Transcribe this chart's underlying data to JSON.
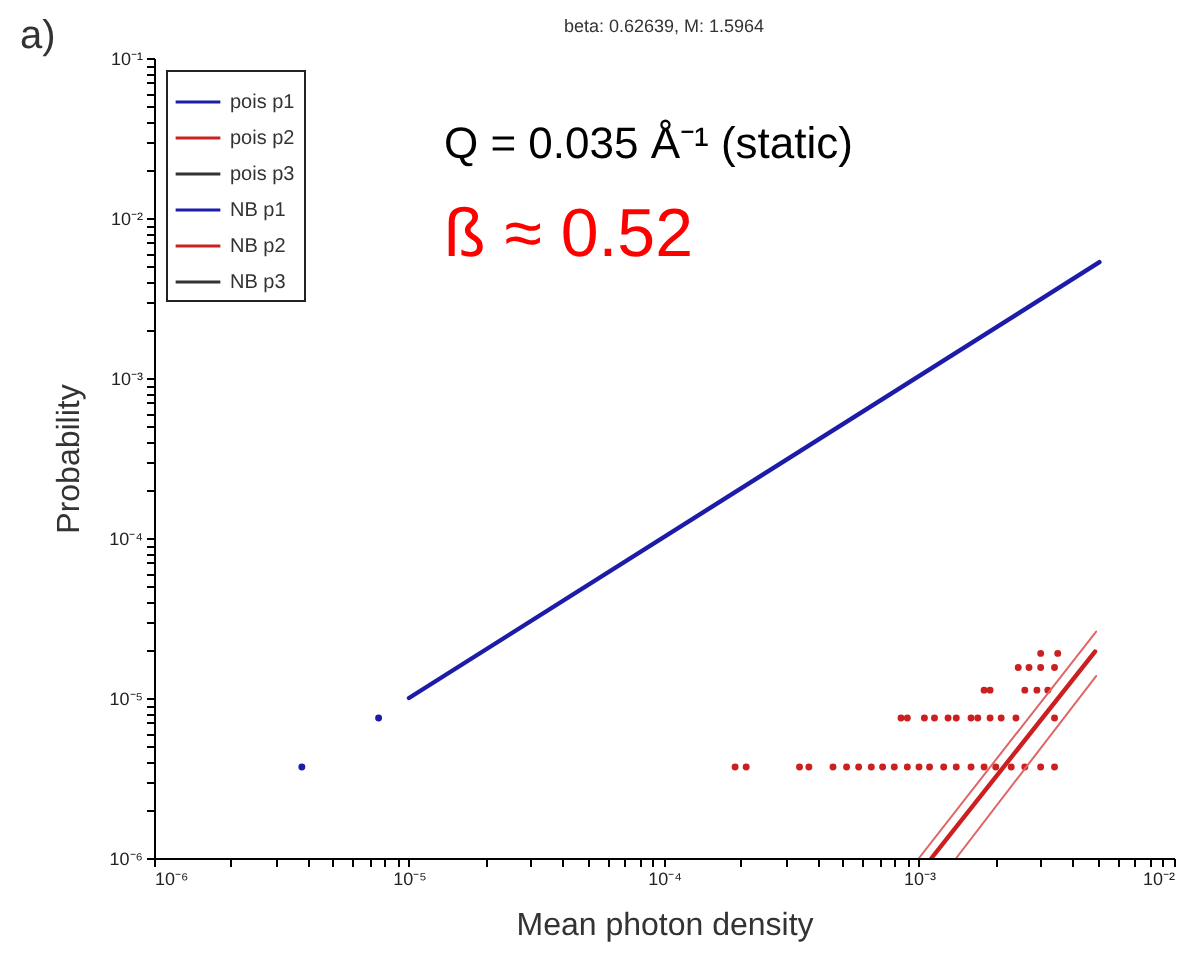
{
  "chart_data": {
    "type": "line",
    "title": "beta: 0.62639, M: 1.5964",
    "xlabel": "Mean photon density",
    "ylabel": "Probability",
    "annotations": [
      "a)",
      "Q = 0.035 Å⁻¹ (static)",
      "ß ≈ 0.52"
    ],
    "log": "xy",
    "legend": "top left",
    "grid": false,
    "xlim": [
      1e-06,
      0.01
    ],
    "ylim": [
      1e-06,
      0.1
    ],
    "xticks": [
      {
        "value": 1e-06,
        "label": "10⁻⁶"
      },
      {
        "value": 2e-06,
        "label": null
      },
      {
        "value": 3e-06,
        "label": null
      },
      {
        "value": 4e-06,
        "label": null
      },
      {
        "value": 5e-06,
        "label": null
      },
      {
        "value": 6e-06,
        "label": null
      },
      {
        "value": 7e-06,
        "label": null
      },
      {
        "value": 8e-06,
        "label": null
      },
      {
        "value": 9e-06,
        "label": null
      },
      {
        "value": 1e-05,
        "label": "10⁻⁵"
      },
      {
        "value": 2e-05,
        "label": null
      },
      {
        "value": 3e-05,
        "label": null
      },
      {
        "value": 4e-05,
        "label": null
      },
      {
        "value": 5e-05,
        "label": null
      },
      {
        "value": 6e-05,
        "label": null
      },
      {
        "value": 7e-05,
        "label": null
      },
      {
        "value": 8e-05,
        "label": null
      },
      {
        "value": 9e-05,
        "label": null
      },
      {
        "value": 0.0001,
        "label": "10⁻⁴"
      },
      {
        "value": 0.0002,
        "label": null
      },
      {
        "value": 0.0003,
        "label": null
      },
      {
        "value": 0.0004,
        "label": null
      },
      {
        "value": 0.0005,
        "label": null
      },
      {
        "value": 0.0006,
        "label": null
      },
      {
        "value": 0.0007,
        "label": null
      },
      {
        "value": 0.0008,
        "label": null
      },
      {
        "value": 0.0009,
        "label": null
      },
      {
        "value": 0.001,
        "label": "10⁻³"
      },
      {
        "value": 0.002,
        "label": null
      },
      {
        "value": 0.003,
        "label": null
      },
      {
        "value": 0.004,
        "label": null
      },
      {
        "value": 0.005,
        "label": null
      },
      {
        "value": 0.006,
        "label": null
      },
      {
        "value": 0.007,
        "label": null
      },
      {
        "value": 0.008,
        "label": null
      },
      {
        "value": 0.009,
        "label": null
      },
      {
        "value": 0.01,
        "label": "10⁻²"
      }
    ],
    "yticks": [
      {
        "value": 1e-06,
        "label": "10⁻⁶"
      },
      {
        "value": 2e-06,
        "label": null
      },
      {
        "value": 3e-06,
        "label": null
      },
      {
        "value": 4e-06,
        "label": null
      },
      {
        "value": 5e-06,
        "label": null
      },
      {
        "value": 6e-06,
        "label": null
      },
      {
        "value": 7e-06,
        "label": null
      },
      {
        "value": 8e-06,
        "label": null
      },
      {
        "value": 9e-06,
        "label": null
      },
      {
        "value": 1e-05,
        "label": "10⁻⁵"
      },
      {
        "value": 2e-05,
        "label": null
      },
      {
        "value": 3e-05,
        "label": null
      },
      {
        "value": 4e-05,
        "label": null
      },
      {
        "value": 5e-05,
        "label": null
      },
      {
        "value": 6e-05,
        "label": null
      },
      {
        "value": 7e-05,
        "label": null
      },
      {
        "value": 8e-05,
        "label": null
      },
      {
        "value": 9e-05,
        "label": null
      },
      {
        "value": 0.0001,
        "label": "10⁻⁴"
      },
      {
        "value": 0.0002,
        "label": null
      },
      {
        "value": 0.0003,
        "label": null
      },
      {
        "value": 0.0004,
        "label": null
      },
      {
        "value": 0.0005,
        "label": null
      },
      {
        "value": 0.0006,
        "label": null
      },
      {
        "value": 0.0007,
        "label": null
      },
      {
        "value": 0.0008,
        "label": null
      },
      {
        "value": 0.0009,
        "label": null
      },
      {
        "value": 0.001,
        "label": "10⁻³"
      },
      {
        "value": 0.002,
        "label": null
      },
      {
        "value": 0.003,
        "label": null
      },
      {
        "value": 0.004,
        "label": null
      },
      {
        "value": 0.005,
        "label": null
      },
      {
        "value": 0.006,
        "label": null
      },
      {
        "value": 0.007,
        "label": null
      },
      {
        "value": 0.008,
        "label": null
      },
      {
        "value": 0.009,
        "label": null
      },
      {
        "value": 0.01,
        "label": "10⁻²"
      },
      {
        "value": 0.02,
        "label": null
      },
      {
        "value": 0.03,
        "label": null
      },
      {
        "value": 0.04,
        "label": null
      },
      {
        "value": 0.05,
        "label": null
      },
      {
        "value": 0.06,
        "label": null
      },
      {
        "value": 0.07,
        "label": null
      },
      {
        "value": 0.08,
        "label": null
      },
      {
        "value": 0.09,
        "label": null
      },
      {
        "value": 0.1,
        "label": "10⁻¹"
      }
    ],
    "series": [
      {
        "name": "pois p1",
        "color": "#1c1ca8",
        "x": [
          1e-05,
          0.0051
        ],
        "values": [
          1e-05,
          0.0053
        ]
      },
      {
        "name": "pois p2",
        "color": "#cc2020",
        "x": [
          0.00112,
          0.0049
        ],
        "values": [
          1e-06,
          1.95e-05
        ]
      },
      {
        "name": "pois p3",
        "color": "#333333"
      },
      {
        "name": "NB p1",
        "type": "scatter",
        "color": "#1c1ca8",
        "x": [
          3.8e-06,
          7.6e-06
        ],
        "values": [
          3.7e-06,
          7.5e-06
        ]
      },
      {
        "name": "NB p2",
        "type": "scatter",
        "color": "#cc2020",
        "x": [
          0.00019,
          0.00021,
          0.00034,
          0.00037,
          0.00046,
          0.00052,
          0.00058,
          0.00065,
          0.00072,
          0.0008,
          0.0009,
          0.001,
          0.0011,
          0.00125,
          0.0014,
          0.0016,
          0.0018,
          0.002,
          0.0023,
          0.0026,
          0.003,
          0.0034,
          0.00085,
          0.0009,
          0.00105,
          0.00115,
          0.0013,
          0.0014,
          0.0016,
          0.0017,
          0.0019,
          0.0021,
          0.0024,
          0.0034,
          0.0018,
          0.0019,
          0.0026,
          0.0029,
          0.0032,
          0.00245,
          0.0027,
          0.003,
          0.0034,
          0.003,
          0.0035
        ],
        "values": [
          3.7e-06,
          3.7e-06,
          3.7e-06,
          3.7e-06,
          3.7e-06,
          3.7e-06,
          3.7e-06,
          3.7e-06,
          3.7e-06,
          3.7e-06,
          3.7e-06,
          3.7e-06,
          3.7e-06,
          3.7e-06,
          3.7e-06,
          3.7e-06,
          3.7e-06,
          3.7e-06,
          3.7e-06,
          3.7e-06,
          3.7e-06,
          3.7e-06,
          7.5e-06,
          7.5e-06,
          7.5e-06,
          7.5e-06,
          7.5e-06,
          7.5e-06,
          7.5e-06,
          7.5e-06,
          7.5e-06,
          7.5e-06,
          7.5e-06,
          7.5e-06,
          1.12e-05,
          1.12e-05,
          1.12e-05,
          1.12e-05,
          1.12e-05,
          1.55e-05,
          1.55e-05,
          1.55e-05,
          1.55e-05,
          1.9e-05,
          1.9e-05
        ]
      },
      {
        "name": "NB p3",
        "type": "scatter",
        "color": "#333333"
      },
      {
        "color": "#e06666",
        "x": [
          0.001,
          0.00495
        ],
        "values": [
          1e-06,
          2.6e-05
        ]
      },
      {
        "color": "#e06666",
        "x": [
          0.0014,
          0.00495
        ],
        "values": [
          1e-06,
          1.37e-05
        ]
      }
    ]
  }
}
